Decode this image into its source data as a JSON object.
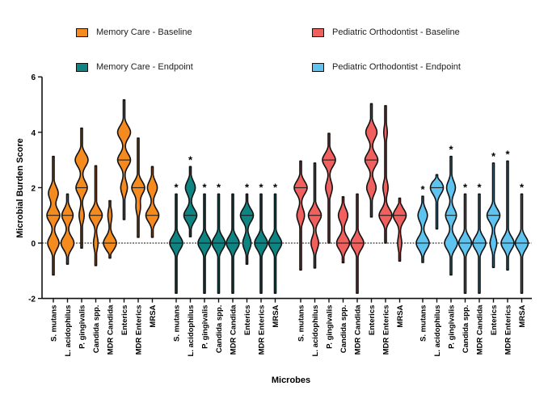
{
  "chart_data": {
    "type": "violin",
    "ylabel": "Microbial Burden Score",
    "xlabel": "Microbes",
    "ylim": [
      -2,
      6
    ],
    "yticks": [
      -2,
      0,
      2,
      4,
      6
    ],
    "reference_line": 0,
    "legend_placement": "top",
    "categories": [
      "S. mutans",
      "L. acidophilus",
      "P. gingivalis",
      "Candida spp.",
      "MDR Candida",
      "Enterics",
      "MDR Enterics",
      "MRSA"
    ],
    "significance_marker": "*",
    "series": [
      {
        "name": "Memory Care - Baseline",
        "color": "#f58a1f",
        "violins": [
          {
            "min": -1.15,
            "max": 3.13,
            "median": 1,
            "modes": [
              [
                1.8,
                0.6
              ],
              [
                1,
                0.8
              ],
              [
                0,
                0.7
              ]
            ],
            "sig": false
          },
          {
            "min": -0.76,
            "max": 1.77,
            "median": 1,
            "modes": [
              [
                1,
                0.6
              ],
              [
                0,
                0.7
              ]
            ],
            "sig": false
          },
          {
            "min": -0.18,
            "max": 4.15,
            "median": 2,
            "modes": [
              [
                3,
                0.8
              ],
              [
                2,
                0.7
              ],
              [
                1,
                0.3
              ]
            ],
            "sig": false
          },
          {
            "min": -0.81,
            "max": 2.79,
            "median": 1,
            "modes": [
              [
                1,
                0.9
              ],
              [
                0,
                0.3
              ]
            ],
            "sig": false
          },
          {
            "min": -0.54,
            "max": 1.53,
            "median": 0,
            "modes": [
              [
                0,
                0.7
              ],
              [
                1,
                0.2
              ]
            ],
            "sig": false
          },
          {
            "min": 0.85,
            "max": 5.17,
            "median": 3,
            "modes": [
              [
                4,
                0.8
              ],
              [
                3,
                0.8
              ],
              [
                2,
                0.4
              ]
            ],
            "sig": false
          },
          {
            "min": 0.21,
            "max": 3.79,
            "median": 2,
            "modes": [
              [
                2,
                0.9
              ],
              [
                1.3,
                0.3
              ]
            ],
            "sig": false
          },
          {
            "min": 0.21,
            "max": 2.76,
            "median": 1,
            "modes": [
              [
                2,
                0.6
              ],
              [
                1,
                0.8
              ]
            ],
            "sig": false
          }
        ]
      },
      {
        "name": "Memory Care - Endpoint",
        "color": "#0f8583",
        "violins": [
          {
            "min": -1.81,
            "max": 1.77,
            "median": 0,
            "modes": [
              [
                0,
                0.9
              ]
            ],
            "sig": true
          },
          {
            "min": 0.23,
            "max": 2.76,
            "median": 1,
            "modes": [
              [
                2,
                0.6
              ],
              [
                1,
                0.8
              ]
            ],
            "sig": true
          },
          {
            "min": -1.81,
            "max": 1.77,
            "median": 0,
            "modes": [
              [
                0,
                0.9
              ]
            ],
            "sig": true
          },
          {
            "min": -1.81,
            "max": 1.77,
            "median": 0,
            "modes": [
              [
                0,
                0.9
              ]
            ],
            "sig": true
          },
          {
            "min": -1.81,
            "max": 1.77,
            "median": 0,
            "modes": [
              [
                0,
                0.9
              ]
            ],
            "sig": false
          },
          {
            "min": -0.76,
            "max": 1.77,
            "median": 1,
            "modes": [
              [
                1,
                0.8
              ],
              [
                0,
                0.5
              ]
            ],
            "sig": true
          },
          {
            "min": -1.81,
            "max": 1.77,
            "median": 0,
            "modes": [
              [
                0,
                0.9
              ]
            ],
            "sig": true
          },
          {
            "min": -1.81,
            "max": 1.77,
            "median": 0,
            "modes": [
              [
                0,
                0.9
              ]
            ],
            "sig": true
          }
        ]
      },
      {
        "name": "Pediatric Orthodontist - Baseline",
        "color": "#f0605e",
        "violins": [
          {
            "min": -0.97,
            "max": 2.96,
            "median": 2,
            "modes": [
              [
                2,
                0.7
              ],
              [
                1,
                0.4
              ]
            ],
            "sig": false
          },
          {
            "min": -0.9,
            "max": 2.89,
            "median": 1,
            "modes": [
              [
                1,
                0.7
              ],
              [
                0,
                0.4
              ]
            ],
            "sig": false
          },
          {
            "min": 0,
            "max": 3.96,
            "median": 3,
            "modes": [
              [
                3,
                0.8
              ],
              [
                2,
                0.4
              ]
            ],
            "sig": false
          },
          {
            "min": -0.71,
            "max": 1.67,
            "median": 0,
            "modes": [
              [
                1,
                0.5
              ],
              [
                0,
                0.7
              ]
            ],
            "sig": false
          },
          {
            "min": -1.81,
            "max": 1.77,
            "median": 0,
            "modes": [
              [
                0,
                0.9
              ]
            ],
            "sig": false
          },
          {
            "min": 0.94,
            "max": 5.03,
            "median": 3,
            "modes": [
              [
                4,
                0.6
              ],
              [
                3,
                0.7
              ],
              [
                2,
                0.5
              ]
            ],
            "sig": false
          },
          {
            "min": 0,
            "max": 4.96,
            "median": 1,
            "modes": [
              [
                4,
                0.2
              ],
              [
                2,
                0.3
              ],
              [
                1,
                0.8
              ]
            ],
            "sig": false
          },
          {
            "min": -0.65,
            "max": 1.62,
            "median": 1,
            "modes": [
              [
                1,
                0.7
              ],
              [
                0,
                0.2
              ]
            ],
            "sig": false
          }
        ]
      },
      {
        "name": "Pediatric Orthodontist - Endpoint",
        "color": "#5ec3ee",
        "violins": [
          {
            "min": -0.7,
            "max": 1.69,
            "median": 0,
            "modes": [
              [
                1,
                0.5
              ],
              [
                0,
                0.7
              ]
            ],
            "sig": true
          },
          {
            "min": 0.51,
            "max": 2.47,
            "median": 2,
            "modes": [
              [
                2,
                0.7
              ]
            ],
            "sig": false
          },
          {
            "min": -1.15,
            "max": 3.13,
            "median": 1,
            "modes": [
              [
                2,
                0.4
              ],
              [
                1,
                0.5
              ],
              [
                0,
                0.6
              ]
            ],
            "sig": true
          },
          {
            "min": -1.81,
            "max": 1.77,
            "median": 0,
            "modes": [
              [
                0,
                0.9
              ]
            ],
            "sig": true
          },
          {
            "min": -1.81,
            "max": 1.77,
            "median": 0,
            "modes": [
              [
                0,
                0.9
              ]
            ],
            "sig": true
          },
          {
            "min": -0.88,
            "max": 2.89,
            "median": 1,
            "modes": [
              [
                1,
                0.8
              ],
              [
                0,
                0.4
              ]
            ],
            "sig": true
          },
          {
            "min": -0.97,
            "max": 2.96,
            "median": 0,
            "modes": [
              [
                0,
                0.8
              ]
            ],
            "sig": true
          },
          {
            "min": -1.81,
            "max": 1.77,
            "median": 0,
            "modes": [
              [
                0,
                0.9
              ]
            ],
            "sig": true
          }
        ]
      }
    ]
  }
}
